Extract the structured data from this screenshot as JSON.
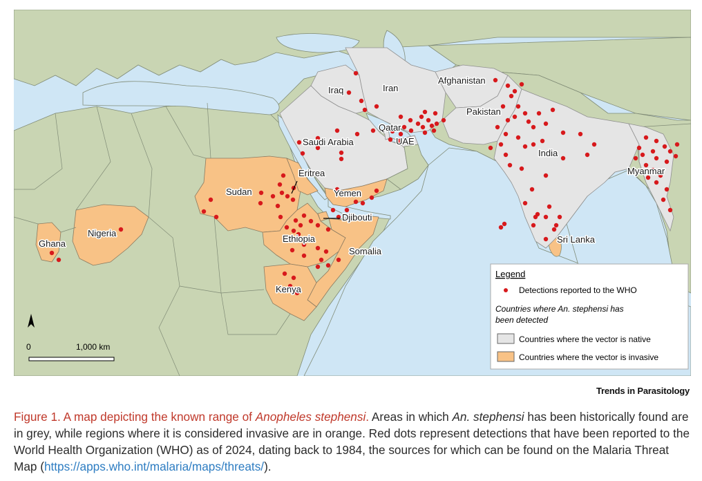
{
  "map": {
    "labels": {
      "iraq": "Iraq",
      "iran": "Iran",
      "afghanistan": "Afghanistan",
      "pakistan": "Pakistan",
      "qatar": "Qatar",
      "uae": "UAE",
      "saudi": "Saudi Arabia",
      "india": "India",
      "myanmar": "Myanmar",
      "eritrea": "Eritrea",
      "sudan": "Sudan",
      "yemen": "Yemen",
      "djibouti": "Djibouti",
      "nigeria": "Nigeria",
      "ethiopia": "Ethiopia",
      "somalia": "Somalia",
      "ghana": "Ghana",
      "srilanka": "Sri Lanka",
      "kenya": "Kenya"
    },
    "colors": {
      "sea": "#cfe6f5",
      "land": "#c9d5b3",
      "native": "#e5e5e5",
      "invasive": "#f8c286",
      "detection": "#d7191c",
      "border": "#7f8a75"
    },
    "north_arrow_icon": "north-arrow-icon",
    "scale": {
      "start": "0",
      "end": "1,000 km"
    }
  },
  "legend": {
    "title": "Legend",
    "detections": "Detections reported to the WHO",
    "subtitle_line1": "Countries where An. stephensi has",
    "subtitle_line2": "been detected",
    "native": "Countries where the vector is native",
    "invasive": "Countries where the vector is invasive"
  },
  "journal": "Trends in Parasitology",
  "caption": {
    "lead_a": "Figure 1. A map depicting the known range of ",
    "lead_species": "Anopheles stephensi",
    "lead_b": ".",
    "text_a": " Areas in which ",
    "text_species": "An. stephensi",
    "text_b": " has been historically found are in grey, while regions where it is considered invasive are in orange. Red dots represent detections that have been reported to the World Health Organization (WHO) as of 2024, dating back to 1984, the sources for which can be found on the Malaria Threat Map (",
    "link": "https://apps.who.int/malaria/maps/threats/",
    "text_c": ")."
  }
}
